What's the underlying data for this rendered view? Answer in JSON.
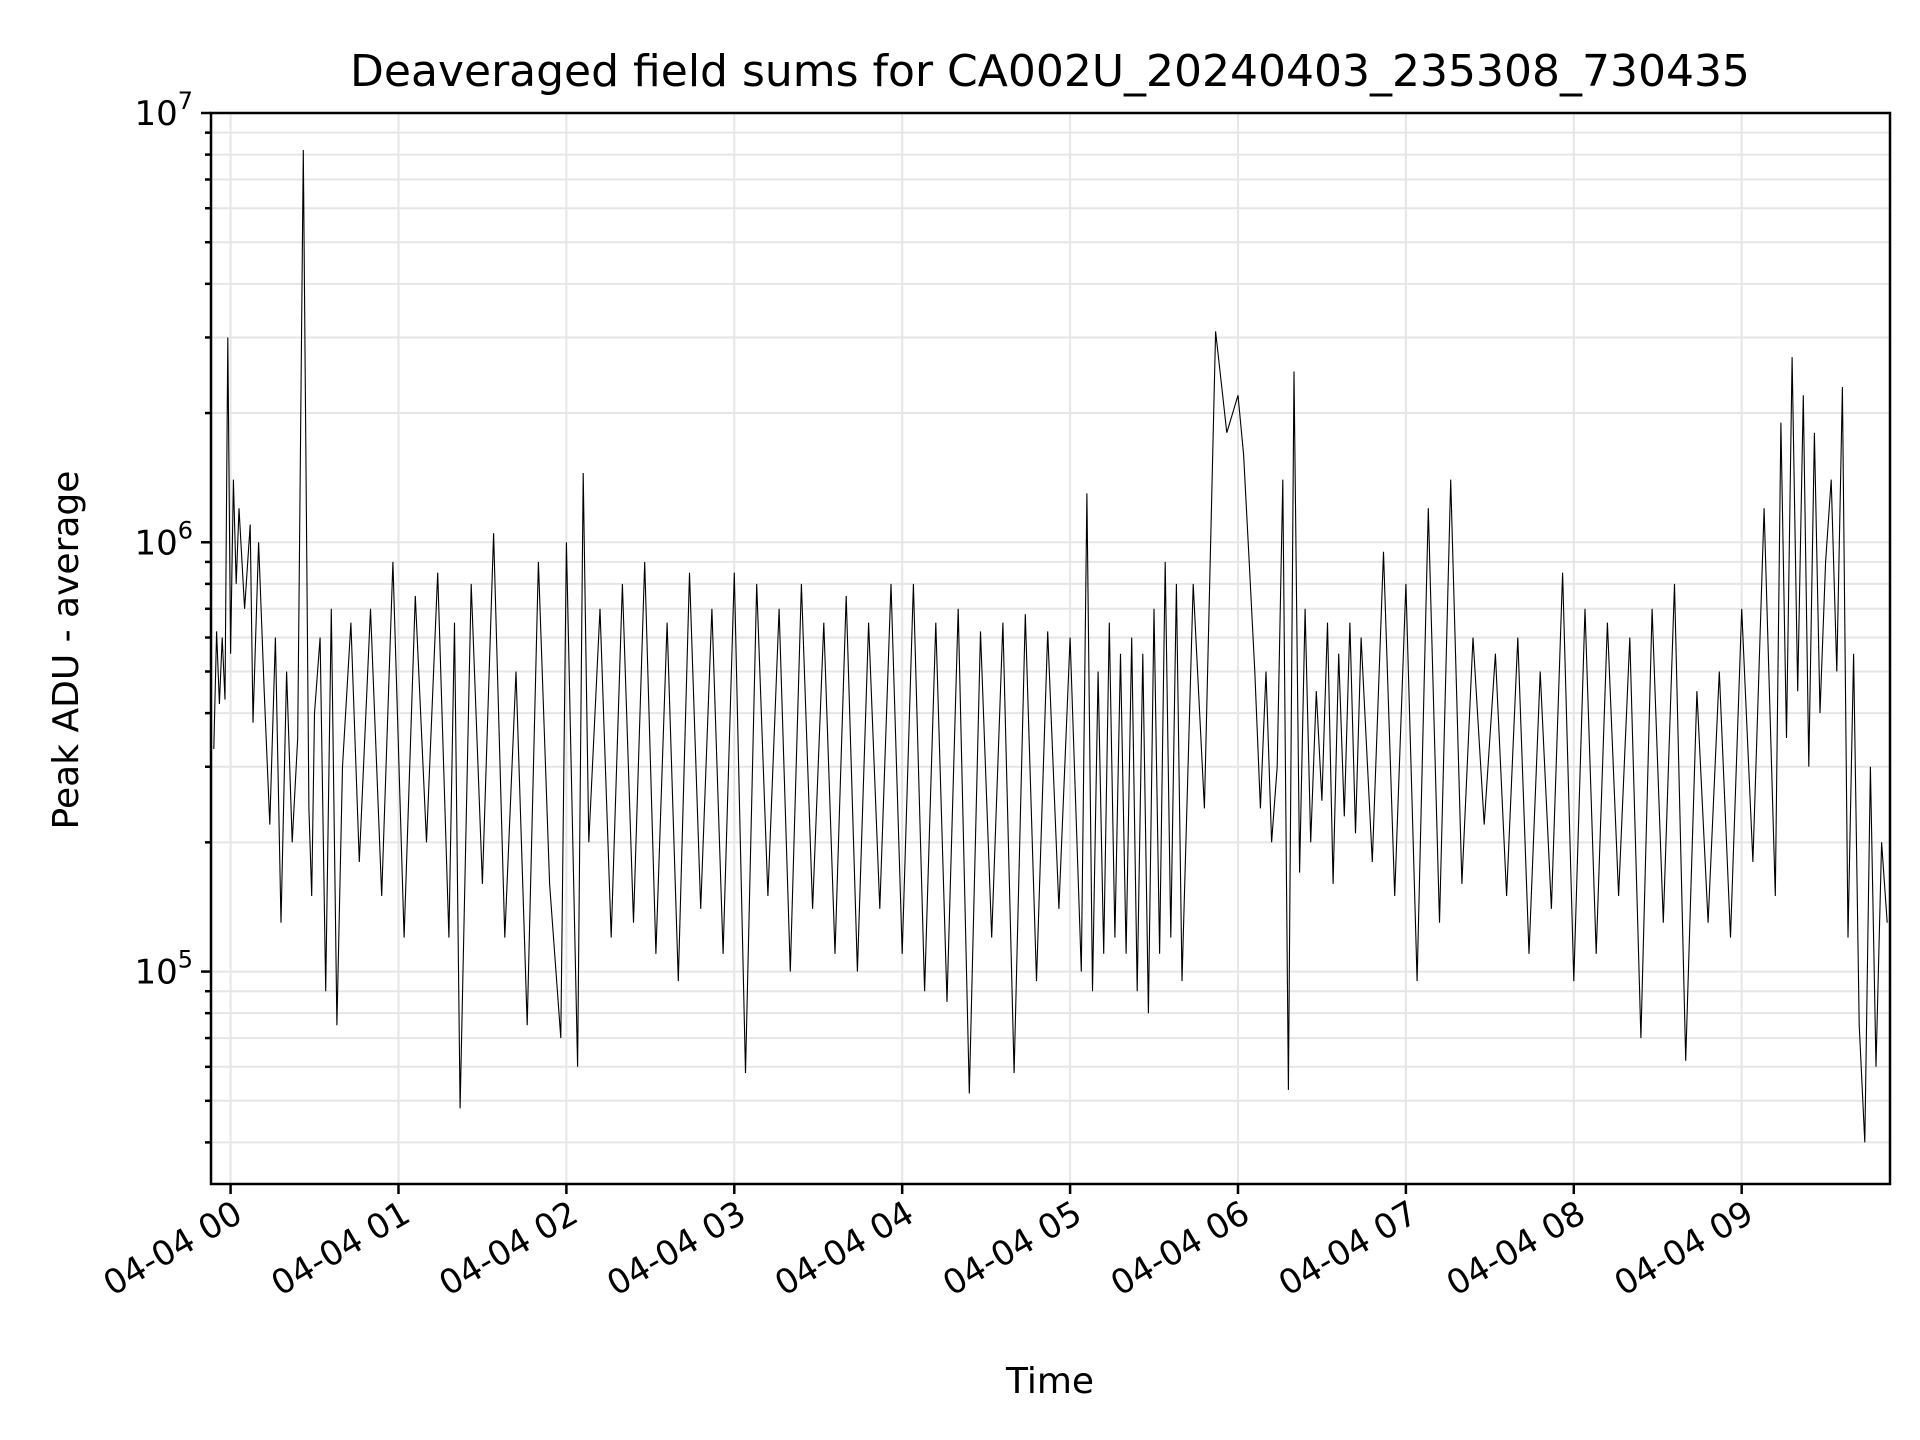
{
  "chart_data": {
    "type": "line",
    "title": "Deaveraged field sums for CA002U_20240403_235308_730435",
    "xlabel": "Time",
    "ylabel": "Peak ADU - average",
    "yscale": "log",
    "ylim": [
      32000,
      10000000
    ],
    "xlim": [
      "2024-04-03T23:53:00",
      "2024-04-04T09:53:00"
    ],
    "grid": true,
    "x_tick_labels": [
      "04-04 00",
      "04-04 01",
      "04-04 02",
      "04-04 03",
      "04-04 04",
      "04-04 05",
      "04-04 06",
      "04-04 07",
      "04-04 08",
      "04-04 09"
    ],
    "y_ticks": [
      {
        "value": 100000,
        "base": "10",
        "exp": "5"
      },
      {
        "value": 1000000,
        "base": "10",
        "exp": "6"
      },
      {
        "value": 10000000,
        "base": "10",
        "exp": "7"
      }
    ],
    "series": [
      {
        "color": "#000000",
        "x": [
          "2024-04-03T23:54:00",
          "2024-04-03T23:55:00",
          "2024-04-03T23:56:00",
          "2024-04-03T23:57:00",
          "2024-04-03T23:58:00",
          "2024-04-03T23:59:00",
          "2024-04-04T00:00:00",
          "2024-04-04T00:01:00",
          "2024-04-04T00:02:00",
          "2024-04-04T00:03:00",
          "2024-04-04T00:05:00",
          "2024-04-04T00:07:00",
          "2024-04-04T00:08:00",
          "2024-04-04T00:10:00",
          "2024-04-04T00:12:00",
          "2024-04-04T00:14:00",
          "2024-04-04T00:16:00",
          "2024-04-04T00:18:00",
          "2024-04-04T00:20:00",
          "2024-04-04T00:22:00",
          "2024-04-04T00:24:00",
          "2024-04-04T00:26:00",
          "2024-04-04T00:28:00",
          "2024-04-04T00:29:00",
          "2024-04-04T00:30:00",
          "2024-04-04T00:32:00",
          "2024-04-04T00:34:00",
          "2024-04-04T00:36:00",
          "2024-04-04T00:38:00",
          "2024-04-04T00:40:00",
          "2024-04-04T00:43:00",
          "2024-04-04T00:46:00",
          "2024-04-04T00:50:00",
          "2024-04-04T00:54:00",
          "2024-04-04T00:58:00",
          "2024-04-04T01:02:00",
          "2024-04-04T01:06:00",
          "2024-04-04T01:10:00",
          "2024-04-04T01:14:00",
          "2024-04-04T01:18:00",
          "2024-04-04T01:20:00",
          "2024-04-04T01:22:00",
          "2024-04-04T01:26:00",
          "2024-04-04T01:30:00",
          "2024-04-04T01:34:00",
          "2024-04-04T01:38:00",
          "2024-04-04T01:42:00",
          "2024-04-04T01:46:00",
          "2024-04-04T01:50:00",
          "2024-04-04T01:54:00",
          "2024-04-04T01:58:00",
          "2024-04-04T02:00:00",
          "2024-04-04T02:04:00",
          "2024-04-04T02:06:00",
          "2024-04-04T02:08:00",
          "2024-04-04T02:12:00",
          "2024-04-04T02:16:00",
          "2024-04-04T02:20:00",
          "2024-04-04T02:24:00",
          "2024-04-04T02:28:00",
          "2024-04-04T02:32:00",
          "2024-04-04T02:36:00",
          "2024-04-04T02:40:00",
          "2024-04-04T02:44:00",
          "2024-04-04T02:48:00",
          "2024-04-04T02:52:00",
          "2024-04-04T02:56:00",
          "2024-04-04T03:00:00",
          "2024-04-04T03:04:00",
          "2024-04-04T03:08:00",
          "2024-04-04T03:12:00",
          "2024-04-04T03:16:00",
          "2024-04-04T03:20:00",
          "2024-04-04T03:24:00",
          "2024-04-04T03:28:00",
          "2024-04-04T03:32:00",
          "2024-04-04T03:36:00",
          "2024-04-04T03:40:00",
          "2024-04-04T03:44:00",
          "2024-04-04T03:48:00",
          "2024-04-04T03:52:00",
          "2024-04-04T03:56:00",
          "2024-04-04T04:00:00",
          "2024-04-04T04:04:00",
          "2024-04-04T04:08:00",
          "2024-04-04T04:12:00",
          "2024-04-04T04:16:00",
          "2024-04-04T04:20:00",
          "2024-04-04T04:24:00",
          "2024-04-04T04:28:00",
          "2024-04-04T04:32:00",
          "2024-04-04T04:36:00",
          "2024-04-04T04:40:00",
          "2024-04-04T04:44:00",
          "2024-04-04T04:48:00",
          "2024-04-04T04:52:00",
          "2024-04-04T04:56:00",
          "2024-04-04T05:00:00",
          "2024-04-04T05:04:00",
          "2024-04-04T05:06:00",
          "2024-04-04T05:08:00",
          "2024-04-04T05:10:00",
          "2024-04-04T05:12:00",
          "2024-04-04T05:14:00",
          "2024-04-04T05:16:00",
          "2024-04-04T05:18:00",
          "2024-04-04T05:20:00",
          "2024-04-04T05:22:00",
          "2024-04-04T05:24:00",
          "2024-04-04T05:26:00",
          "2024-04-04T05:28:00",
          "2024-04-04T05:30:00",
          "2024-04-04T05:32:00",
          "2024-04-04T05:34:00",
          "2024-04-04T05:36:00",
          "2024-04-04T05:38:00",
          "2024-04-04T05:40:00",
          "2024-04-04T05:44:00",
          "2024-04-04T05:48:00",
          "2024-04-04T05:52:00",
          "2024-04-04T05:56:00",
          "2024-04-04T06:00:00",
          "2024-04-04T06:02:00",
          "2024-04-04T06:04:00",
          "2024-04-04T06:06:00",
          "2024-04-04T06:08:00",
          "2024-04-04T06:10:00",
          "2024-04-04T06:12:00",
          "2024-04-04T06:14:00",
          "2024-04-04T06:16:00",
          "2024-04-04T06:18:00",
          "2024-04-04T06:20:00",
          "2024-04-04T06:22:00",
          "2024-04-04T06:24:00",
          "2024-04-04T06:26:00",
          "2024-04-04T06:28:00",
          "2024-04-04T06:30:00",
          "2024-04-04T06:32:00",
          "2024-04-04T06:34:00",
          "2024-04-04T06:36:00",
          "2024-04-04T06:38:00",
          "2024-04-04T06:40:00",
          "2024-04-04T06:42:00",
          "2024-04-04T06:44:00",
          "2024-04-04T06:48:00",
          "2024-04-04T06:52:00",
          "2024-04-04T06:56:00",
          "2024-04-04T07:00:00",
          "2024-04-04T07:04:00",
          "2024-04-04T07:08:00",
          "2024-04-04T07:12:00",
          "2024-04-04T07:16:00",
          "2024-04-04T07:20:00",
          "2024-04-04T07:24:00",
          "2024-04-04T07:28:00",
          "2024-04-04T07:32:00",
          "2024-04-04T07:36:00",
          "2024-04-04T07:40:00",
          "2024-04-04T07:44:00",
          "2024-04-04T07:48:00",
          "2024-04-04T07:52:00",
          "2024-04-04T07:56:00",
          "2024-04-04T08:00:00",
          "2024-04-04T08:04:00",
          "2024-04-04T08:08:00",
          "2024-04-04T08:12:00",
          "2024-04-04T08:16:00",
          "2024-04-04T08:20:00",
          "2024-04-04T08:24:00",
          "2024-04-04T08:28:00",
          "2024-04-04T08:32:00",
          "2024-04-04T08:36:00",
          "2024-04-04T08:40:00",
          "2024-04-04T08:44:00",
          "2024-04-04T08:48:00",
          "2024-04-04T08:52:00",
          "2024-04-04T08:56:00",
          "2024-04-04T09:00:00",
          "2024-04-04T09:04:00",
          "2024-04-04T09:08:00",
          "2024-04-04T09:12:00",
          "2024-04-04T09:14:00",
          "2024-04-04T09:16:00",
          "2024-04-04T09:18:00",
          "2024-04-04T09:20:00",
          "2024-04-04T09:22:00",
          "2024-04-04T09:24:00",
          "2024-04-04T09:26:00",
          "2024-04-04T09:28:00",
          "2024-04-04T09:30:00",
          "2024-04-04T09:32:00",
          "2024-04-04T09:34:00",
          "2024-04-04T09:36:00",
          "2024-04-04T09:38:00",
          "2024-04-04T09:40:00",
          "2024-04-04T09:42:00",
          "2024-04-04T09:44:00",
          "2024-04-04T09:46:00",
          "2024-04-04T09:48:00",
          "2024-04-04T09:50:00",
          "2024-04-04T09:52:00"
        ],
        "y": [
          330000,
          620000,
          420000,
          600000,
          430000,
          3000000,
          550000,
          1400000,
          800000,
          1200000,
          700000,
          1100000,
          380000,
          1000000,
          450000,
          220000,
          600000,
          130000,
          500000,
          200000,
          350000,
          8200000,
          240000,
          150000,
          400000,
          600000,
          90000,
          700000,
          75000,
          300000,
          650000,
          180000,
          700000,
          150000,
          900000,
          120000,
          750000,
          200000,
          850000,
          120000,
          650000,
          48000,
          800000,
          160000,
          1050000,
          120000,
          500000,
          75000,
          900000,
          160000,
          70000,
          1000000,
          60000,
          1450000,
          200000,
          700000,
          120000,
          800000,
          130000,
          900000,
          110000,
          650000,
          95000,
          850000,
          140000,
          700000,
          110000,
          850000,
          58000,
          800000,
          150000,
          700000,
          100000,
          800000,
          140000,
          650000,
          110000,
          750000,
          100000,
          650000,
          140000,
          800000,
          110000,
          800000,
          90000,
          650000,
          85000,
          700000,
          52000,
          620000,
          120000,
          650000,
          58000,
          680000,
          95000,
          620000,
          140000,
          600000,
          100000,
          1300000,
          90000,
          500000,
          110000,
          650000,
          120000,
          550000,
          110000,
          600000,
          90000,
          550000,
          80000,
          700000,
          110000,
          900000,
          120000,
          800000,
          95000,
          800000,
          240000,
          3100000,
          1800000,
          2200000,
          1600000,
          900000,
          500000,
          240000,
          500000,
          200000,
          300000,
          1400000,
          53000,
          2500000,
          170000,
          700000,
          200000,
          450000,
          250000,
          650000,
          160000,
          550000,
          230000,
          650000,
          210000,
          600000,
          180000,
          950000,
          150000,
          800000,
          95000,
          1200000,
          130000,
          1400000,
          160000,
          600000,
          220000,
          550000,
          150000,
          600000,
          110000,
          500000,
          140000,
          850000,
          95000,
          700000,
          110000,
          650000,
          150000,
          600000,
          70000,
          700000,
          130000,
          800000,
          62000,
          450000,
          130000,
          500000,
          120000,
          700000,
          180000,
          1200000,
          150000,
          1900000,
          350000,
          2700000,
          450000,
          2200000,
          300000,
          1800000,
          400000,
          900000,
          1400000,
          500000,
          2300000,
          120000,
          550000,
          75000,
          40000,
          300000,
          60000,
          200000,
          130000
        ]
      }
    ]
  }
}
